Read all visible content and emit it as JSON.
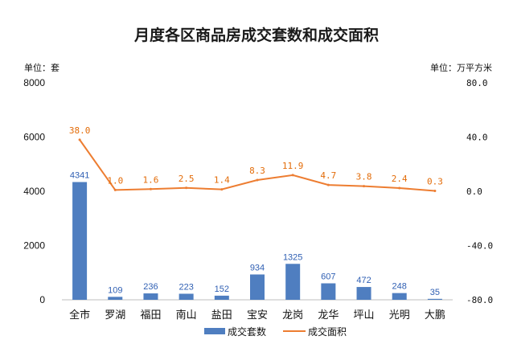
{
  "chart_data": {
    "type": "bar+line",
    "title": "月度各区商品房成交套数和成交面积",
    "left_unit": "单位：套",
    "right_unit": "单位：万平方米",
    "categories": [
      "全市",
      "罗湖",
      "福田",
      "南山",
      "盐田",
      "宝安",
      "龙岗",
      "龙华",
      "坪山",
      "光明",
      "大鹏"
    ],
    "series": [
      {
        "name": "成交套数",
        "type": "bar",
        "axis": "left",
        "color": "#4f7ec0",
        "values": [
          4341,
          109,
          236,
          223,
          152,
          934,
          1325,
          607,
          472,
          248,
          35
        ],
        "labels": [
          "4341",
          "109",
          "236",
          "223",
          "152",
          "934",
          "1325",
          "607",
          "472",
          "248",
          "35"
        ]
      },
      {
        "name": "成交面积",
        "type": "line",
        "axis": "right",
        "color": "#ed7d31",
        "values": [
          38.0,
          1.0,
          1.6,
          2.5,
          1.4,
          8.3,
          11.9,
          4.7,
          3.8,
          2.4,
          0.3
        ],
        "labels": [
          "38.0",
          "1.0",
          "1.6",
          "2.5",
          "1.4",
          "8.3",
          "11.9",
          "4.7",
          "3.8",
          "2.4",
          "0.3"
        ]
      }
    ],
    "y_left": {
      "min": 0,
      "max": 8000,
      "ticks": [
        0,
        2000,
        4000,
        6000,
        8000
      ]
    },
    "y_right": {
      "min": -80,
      "max": 80,
      "ticks": [
        -80,
        -40,
        0,
        40,
        80
      ],
      "tick_labels": [
        "-80.0",
        "-40.0",
        "0.0",
        "40.0",
        "80.0"
      ]
    },
    "grid": false,
    "legend_position": "bottom"
  }
}
